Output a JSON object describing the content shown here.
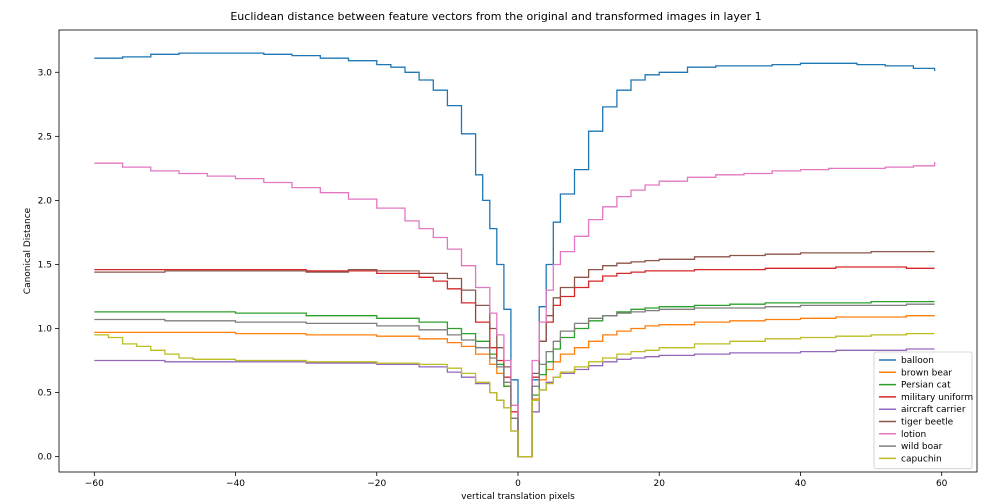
{
  "chart_data": {
    "type": "line",
    "title": "Euclidean distance between feature vectors from the original and transformed images in layer 1",
    "xlabel": "vertical translation pixels",
    "ylabel": "Canonical Distance",
    "xlim": [
      -65,
      65
    ],
    "ylim": [
      -0.12,
      3.33
    ],
    "xticks": [
      -60,
      -40,
      -20,
      0,
      20,
      40,
      60
    ],
    "xtick_labels": [
      "−60",
      "−40",
      "−20",
      "0",
      "20",
      "40",
      "60"
    ],
    "yticks": [
      0.0,
      0.5,
      1.0,
      1.5,
      2.0,
      2.5,
      3.0
    ],
    "ytick_labels": [
      "0.0",
      "0.5",
      "1.0",
      "1.5",
      "2.0",
      "2.5",
      "3.0"
    ],
    "grid": false,
    "legend_position": "lower-right",
    "step_line": true,
    "series": [
      {
        "name": "balloon",
        "color": "#1f77b4",
        "x": [
          -60,
          -56,
          -52,
          -48,
          -44,
          -40,
          -36,
          -32,
          -28,
          -24,
          -20,
          -18,
          -16,
          -14,
          -12,
          -10,
          -8,
          -6,
          -5,
          -4,
          -3,
          -2,
          -1,
          0,
          1,
          2,
          3,
          4,
          5,
          6,
          8,
          10,
          12,
          14,
          16,
          18,
          20,
          24,
          28,
          32,
          36,
          40,
          44,
          48,
          52,
          56,
          59
        ],
        "y": [
          3.11,
          3.12,
          3.14,
          3.15,
          3.15,
          3.15,
          3.14,
          3.13,
          3.11,
          3.09,
          3.06,
          3.04,
          3.0,
          2.94,
          2.86,
          2.74,
          2.52,
          2.2,
          2.0,
          1.78,
          1.5,
          1.15,
          0.6,
          0.0,
          0.0,
          0.6,
          1.17,
          1.5,
          1.83,
          2.05,
          2.24,
          2.54,
          2.73,
          2.86,
          2.94,
          2.98,
          3.0,
          3.04,
          3.05,
          3.05,
          3.06,
          3.07,
          3.07,
          3.06,
          3.05,
          3.03,
          3.01
        ]
      },
      {
        "name": "brown bear",
        "color": "#ff7f0e",
        "x": [
          -60,
          -50,
          -40,
          -30,
          -20,
          -14,
          -10,
          -8,
          -6,
          -4,
          -3,
          -2,
          -1,
          0,
          1,
          2,
          3,
          4,
          5,
          6,
          8,
          10,
          12,
          14,
          16,
          18,
          20,
          25,
          30,
          35,
          40,
          45,
          50,
          55,
          59
        ],
        "y": [
          0.97,
          0.97,
          0.96,
          0.95,
          0.94,
          0.92,
          0.89,
          0.86,
          0.8,
          0.72,
          0.65,
          0.55,
          0.3,
          0.0,
          0.0,
          0.45,
          0.6,
          0.68,
          0.74,
          0.8,
          0.85,
          0.9,
          0.95,
          0.98,
          1.0,
          1.02,
          1.03,
          1.05,
          1.06,
          1.07,
          1.08,
          1.09,
          1.09,
          1.1,
          1.1
        ]
      },
      {
        "name": "Persian cat",
        "color": "#2ca02c",
        "x": [
          -60,
          -50,
          -40,
          -30,
          -20,
          -14,
          -10,
          -8,
          -6,
          -4,
          -3,
          -2,
          -1,
          0,
          1,
          2,
          3,
          4,
          5,
          6,
          8,
          10,
          12,
          14,
          16,
          18,
          20,
          25,
          30,
          35,
          40,
          45,
          50,
          55,
          59
        ],
        "y": [
          1.13,
          1.13,
          1.12,
          1.1,
          1.08,
          1.05,
          1.0,
          0.96,
          0.9,
          0.8,
          0.72,
          0.55,
          0.3,
          0.0,
          0.0,
          0.48,
          0.64,
          0.74,
          0.84,
          0.93,
          1.0,
          1.06,
          1.1,
          1.13,
          1.15,
          1.16,
          1.17,
          1.18,
          1.19,
          1.2,
          1.2,
          1.2,
          1.21,
          1.21,
          1.21
        ]
      },
      {
        "name": "military uniform",
        "color": "#d62728",
        "x": [
          -60,
          -50,
          -44,
          -40,
          -36,
          -30,
          -20,
          -14,
          -12,
          -10,
          -8,
          -6,
          -4,
          -3,
          -2,
          -1,
          0,
          1,
          2,
          3,
          4,
          5,
          6,
          8,
          10,
          12,
          14,
          16,
          18,
          20,
          25,
          30,
          35,
          40,
          45,
          50,
          55,
          59
        ],
        "y": [
          1.46,
          1.46,
          1.46,
          1.46,
          1.46,
          1.45,
          1.43,
          1.4,
          1.37,
          1.31,
          1.2,
          1.05,
          0.85,
          0.75,
          0.62,
          0.35,
          0.0,
          0.0,
          0.62,
          0.9,
          1.05,
          1.18,
          1.25,
          1.32,
          1.37,
          1.41,
          1.43,
          1.44,
          1.45,
          1.45,
          1.46,
          1.46,
          1.47,
          1.47,
          1.48,
          1.48,
          1.47,
          1.47
        ]
      },
      {
        "name": "aircraft carrier",
        "color": "#9467bd",
        "x": [
          -60,
          -50,
          -40,
          -30,
          -20,
          -14,
          -10,
          -8,
          -6,
          -4,
          -3,
          -2,
          -1,
          0,
          1,
          2,
          3,
          4,
          5,
          6,
          8,
          10,
          12,
          14,
          16,
          18,
          20,
          25,
          30,
          35,
          40,
          45,
          50,
          55,
          59
        ],
        "y": [
          0.75,
          0.74,
          0.74,
          0.73,
          0.72,
          0.7,
          0.66,
          0.62,
          0.57,
          0.5,
          0.44,
          0.38,
          0.2,
          0.0,
          0.0,
          0.35,
          0.52,
          0.58,
          0.62,
          0.65,
          0.68,
          0.71,
          0.74,
          0.76,
          0.77,
          0.78,
          0.79,
          0.8,
          0.81,
          0.81,
          0.82,
          0.83,
          0.83,
          0.84,
          0.84
        ]
      },
      {
        "name": "tiger beetle",
        "color": "#8c564b",
        "x": [
          -60,
          -50,
          -40,
          -30,
          -24,
          -20,
          -14,
          -10,
          -8,
          -6,
          -4,
          -3,
          -2,
          -1,
          0,
          1,
          2,
          3,
          4,
          5,
          6,
          8,
          10,
          12,
          14,
          16,
          18,
          20,
          25,
          30,
          35,
          40,
          45,
          50,
          55,
          59
        ],
        "y": [
          1.44,
          1.45,
          1.45,
          1.44,
          1.46,
          1.45,
          1.43,
          1.39,
          1.3,
          1.18,
          1.0,
          0.85,
          0.7,
          0.4,
          0.0,
          0.0,
          0.65,
          0.9,
          1.1,
          1.24,
          1.32,
          1.4,
          1.46,
          1.49,
          1.51,
          1.52,
          1.53,
          1.54,
          1.56,
          1.57,
          1.58,
          1.59,
          1.59,
          1.6,
          1.6,
          1.6
        ]
      },
      {
        "name": "lotion",
        "color": "#e377c2",
        "x": [
          -60,
          -56,
          -52,
          -48,
          -44,
          -40,
          -36,
          -32,
          -28,
          -24,
          -20,
          -16,
          -14,
          -12,
          -10,
          -8,
          -6,
          -4,
          -3,
          -2,
          -1,
          0,
          1,
          2,
          3,
          4,
          5,
          6,
          8,
          10,
          12,
          14,
          16,
          18,
          20,
          24,
          28,
          32,
          36,
          40,
          44,
          48,
          52,
          56,
          59
        ],
        "y": [
          2.29,
          2.26,
          2.23,
          2.21,
          2.19,
          2.17,
          2.14,
          2.1,
          2.06,
          2.01,
          1.94,
          1.84,
          1.78,
          1.71,
          1.62,
          1.49,
          1.32,
          1.12,
          0.95,
          0.75,
          0.4,
          0.0,
          0.0,
          0.75,
          1.05,
          1.3,
          1.5,
          1.6,
          1.72,
          1.85,
          1.95,
          2.03,
          2.08,
          2.12,
          2.15,
          2.18,
          2.2,
          2.21,
          2.23,
          2.24,
          2.25,
          2.25,
          2.26,
          2.27,
          2.3
        ]
      },
      {
        "name": "wild boar",
        "color": "#7f7f7f",
        "x": [
          -60,
          -50,
          -40,
          -30,
          -20,
          -14,
          -10,
          -8,
          -6,
          -4,
          -3,
          -2,
          -1,
          0,
          1,
          2,
          3,
          4,
          5,
          6,
          8,
          10,
          12,
          14,
          16,
          18,
          20,
          25,
          30,
          35,
          40,
          45,
          50,
          55,
          59
        ],
        "y": [
          1.07,
          1.06,
          1.05,
          1.04,
          1.02,
          0.99,
          0.95,
          0.91,
          0.85,
          0.77,
          0.7,
          0.58,
          0.3,
          0.0,
          0.0,
          0.55,
          0.72,
          0.82,
          0.9,
          0.98,
          1.04,
          1.08,
          1.1,
          1.12,
          1.13,
          1.14,
          1.15,
          1.16,
          1.16,
          1.17,
          1.18,
          1.18,
          1.18,
          1.19,
          1.19
        ]
      },
      {
        "name": "capuchin",
        "color": "#bcbd22",
        "x": [
          -60,
          -58,
          -56,
          -54,
          -52,
          -50,
          -48,
          -46,
          -44,
          -40,
          -30,
          -20,
          -14,
          -10,
          -8,
          -6,
          -4,
          -3,
          -2,
          -1,
          0,
          1,
          2,
          3,
          4,
          5,
          6,
          8,
          10,
          12,
          14,
          16,
          18,
          20,
          25,
          30,
          35,
          40,
          45,
          50,
          55,
          59
        ],
        "y": [
          0.95,
          0.93,
          0.88,
          0.86,
          0.83,
          0.8,
          0.77,
          0.76,
          0.76,
          0.75,
          0.74,
          0.73,
          0.72,
          0.69,
          0.65,
          0.58,
          0.5,
          0.44,
          0.38,
          0.2,
          0.0,
          0.0,
          0.44,
          0.52,
          0.57,
          0.62,
          0.66,
          0.7,
          0.74,
          0.77,
          0.8,
          0.82,
          0.83,
          0.85,
          0.88,
          0.9,
          0.92,
          0.93,
          0.94,
          0.95,
          0.96,
          0.96
        ]
      }
    ]
  }
}
